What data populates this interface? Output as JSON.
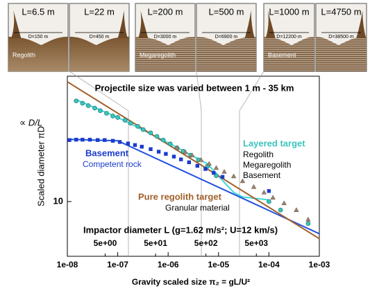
{
  "panels": [
    {
      "label": "L=6.5 m",
      "diameter": "D=150 m",
      "material": "Regolith"
    },
    {
      "label": "L=22 m",
      "diameter": "D=450 m"
    },
    {
      "label": "L=200 m",
      "diameter": "D=3000 m",
      "material": "Megaregolith"
    },
    {
      "label": "L=500 m",
      "diameter": "D=6900 m"
    },
    {
      "label": "L=1000 m",
      "diameter": "D=12200 m",
      "material": "Basement"
    },
    {
      "label": "L=4750 m",
      "diameter": "D=38500 m"
    }
  ],
  "chart_data": {
    "type": "scatter",
    "title": "Projectile size was varied between 1 m - 35 km",
    "ylabel_top": "∝ D/L",
    "ylabel": "Scaled diameter πD",
    "xlabel": "Gravity scaled size π₂ = gL/U²",
    "x2label": "Impactor diameter L (g=1.62 m/s²; U=12 km/s)",
    "log_x": true,
    "log_y": true,
    "xlim": [
      1e-08,
      0.001
    ],
    "xticks": [
      {
        "value": 1e-08,
        "label": "1e-08"
      },
      {
        "value": 1e-07,
        "label": "1e-07"
      },
      {
        "value": 1e-06,
        "label": "1e-06"
      },
      {
        "value": 1e-05,
        "label": "1e-05"
      },
      {
        "value": 0.0001,
        "label": "1e-04"
      },
      {
        "value": 0.001,
        "label": "1e-03"
      }
    ],
    "x2lim": [
      0.889,
      88889
    ],
    "x2ticks": [
      {
        "value": 5,
        "label": "5e+00"
      },
      {
        "value": 50,
        "label": "5e+01"
      },
      {
        "value": 500,
        "label": "5e+02"
      },
      {
        "value": 5000,
        "label": "5e+03"
      }
    ],
    "ylim": [
      5.06,
      47.6
    ],
    "yticks": [
      10
    ],
    "series": [
      {
        "name": "Layered target",
        "notes": [
          "Regolith",
          "Megaregolith",
          "Basement"
        ],
        "marker": "circle",
        "color": "#3cc4bc",
        "line_color": "#40d8d8",
        "x": [
          1.5e-08,
          2e-08,
          2.6e-08,
          3.5e-08,
          4.5e-08,
          6e-08,
          8e-08,
          1e-07,
          1.4e-07,
          1.8e-07,
          2.5e-07,
          3.2e-07,
          4.5e-07,
          6e-07,
          8e-07,
          1.1e-06,
          1.5e-06,
          2e-06,
          2.8e-06,
          4e-06,
          6e-06,
          9e-06,
          0.0001,
          0.00017,
          0.0006
        ],
        "values": [
          35,
          34,
          33,
          32,
          31,
          30,
          29,
          28.5,
          27.5,
          26.5,
          25.5,
          24.5,
          23.5,
          22.5,
          21.5,
          20.5,
          19.5,
          18.7,
          17.8,
          16.8,
          15.5,
          13.8,
          10,
          9,
          7.6
        ],
        "fit": {
          "x": [
            1.5e-08,
            1e-07,
            1e-06,
            6e-06,
            1.2e-05,
            2e-05,
            3e-05,
            0.0001
          ],
          "values": [
            35.5,
            28.5,
            20.8,
            16,
            13,
            11.2,
            10.6,
            10.2
          ]
        }
      },
      {
        "name": "Basement",
        "notes": [
          "Competent rock"
        ],
        "marker": "square",
        "color": "#1a3ccc",
        "line_color": "#2050e0",
        "x": [
          1.1e-08,
          1.5e-08,
          2e-08,
          2.8e-08,
          4e-08,
          5.5e-08,
          8e-08,
          1.1e-07,
          1.6e-07,
          2.2e-07,
          3e-07,
          4.5e-07,
          6.5e-07,
          9e-07,
          1.3e-06,
          1.8e-06,
          2.6e-06,
          3.8e-06,
          5.5e-06,
          8e-06,
          1.2e-05,
          0.0001
        ],
        "values": [
          21.5,
          21.6,
          21.6,
          21.6,
          21.5,
          21.5,
          21.3,
          21,
          20.6,
          20.2,
          19.8,
          19.2,
          18.6,
          18.1,
          17.5,
          16.9,
          16.3,
          15.6,
          15,
          14.3,
          13.6,
          11.4
        ],
        "fit": {
          "x": [
            1e-08,
            1e-07,
            0.001
          ],
          "values": [
            21.7,
            21.3,
            6.7
          ]
        }
      },
      {
        "name": "Pure regolith target",
        "notes": [
          "Granular material"
        ],
        "marker": "triangle",
        "color": "#9a8270",
        "line_color": "#a0602a",
        "x": [
          1.5e-06,
          2.2e-06,
          3e-06,
          4.5e-06,
          6.5e-06,
          9e-06,
          1.3e-05,
          2e-05,
          3e-05,
          5e-05,
          8e-05,
          0.00012,
          0.0002,
          0.00035,
          0.0006
        ],
        "values": [
          19.5,
          18.5,
          17.8,
          16.8,
          16,
          15.2,
          14.5,
          13.7,
          12.9,
          12,
          11.2,
          10.5,
          9.8,
          9,
          8
        ],
        "fit": {
          "x": [
            1e-08,
            0.001
          ],
          "values": [
            44.4,
            6.3
          ]
        }
      }
    ]
  }
}
